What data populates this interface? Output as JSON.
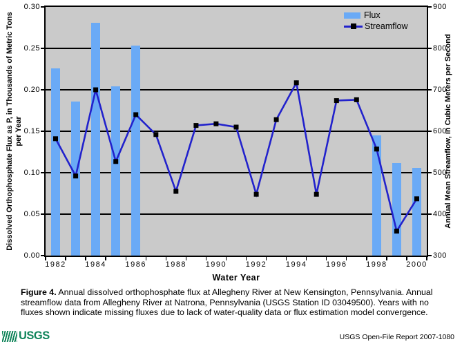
{
  "chart_data": {
    "type": "combo-bar-line",
    "x": [
      1982,
      1983,
      1984,
      1985,
      1986,
      1987,
      1988,
      1989,
      1990,
      1991,
      1992,
      1993,
      1994,
      1995,
      1996,
      1997,
      1998,
      1999,
      2000
    ],
    "x_tick_labels": [
      "1982",
      "1984",
      "1986",
      "1988",
      "1990",
      "1992",
      "1994",
      "1996",
      "1998",
      "2000"
    ],
    "xlabel": "Water Year",
    "left_axis": {
      "label": "Dissolved Orthophosphate Flux as P, in Thousands of Metric Tons per Year",
      "range": [
        0,
        0.3
      ],
      "ticks": [
        "0.30",
        "0.25",
        "0.20",
        "0.15",
        "0.10",
        "0.05",
        "0.00"
      ]
    },
    "right_axis": {
      "label": "Annual Mean Streamflow, in Cubic Meters per Second",
      "range": [
        300,
        900
      ],
      "ticks": [
        "900",
        "800",
        "700",
        "600",
        "500",
        "400",
        "300"
      ]
    },
    "grid": "horizontal",
    "legend_position": "top-right-inside",
    "plot_background": "#CACACA",
    "series": [
      {
        "name": "Flux",
        "type": "bar",
        "axis": "left",
        "color": "#6AAAF6",
        "values": [
          0.226,
          0.186,
          0.281,
          0.204,
          0.253,
          null,
          null,
          null,
          null,
          null,
          null,
          null,
          null,
          null,
          null,
          null,
          0.145,
          0.112,
          0.106
        ]
      },
      {
        "name": "Streamflow",
        "type": "line",
        "axis": "right",
        "color": "#2222CC",
        "marker_color": "#000000",
        "values": [
          582,
          492,
          700,
          527,
          640,
          592,
          455,
          614,
          618,
          610,
          448,
          628,
          717,
          448,
          674,
          676,
          557,
          359,
          437
        ]
      }
    ]
  },
  "caption": {
    "label": "Figure 4.",
    "text": "Annual dissolved orthophosphate flux at Allegheny River at New Kensington, Pennsylvania. Annual streamflow data from Allegheny River at Natrona, Pennsylvania (USGS Station ID 03049500). Years with no fluxes shown indicate missing fluxes due to lack of water-quality data or flux estimation model convergence."
  },
  "footer": {
    "logo_text": "USGS",
    "logo_color": "#10845A",
    "report": "USGS Open-File Report 2007-1080"
  }
}
